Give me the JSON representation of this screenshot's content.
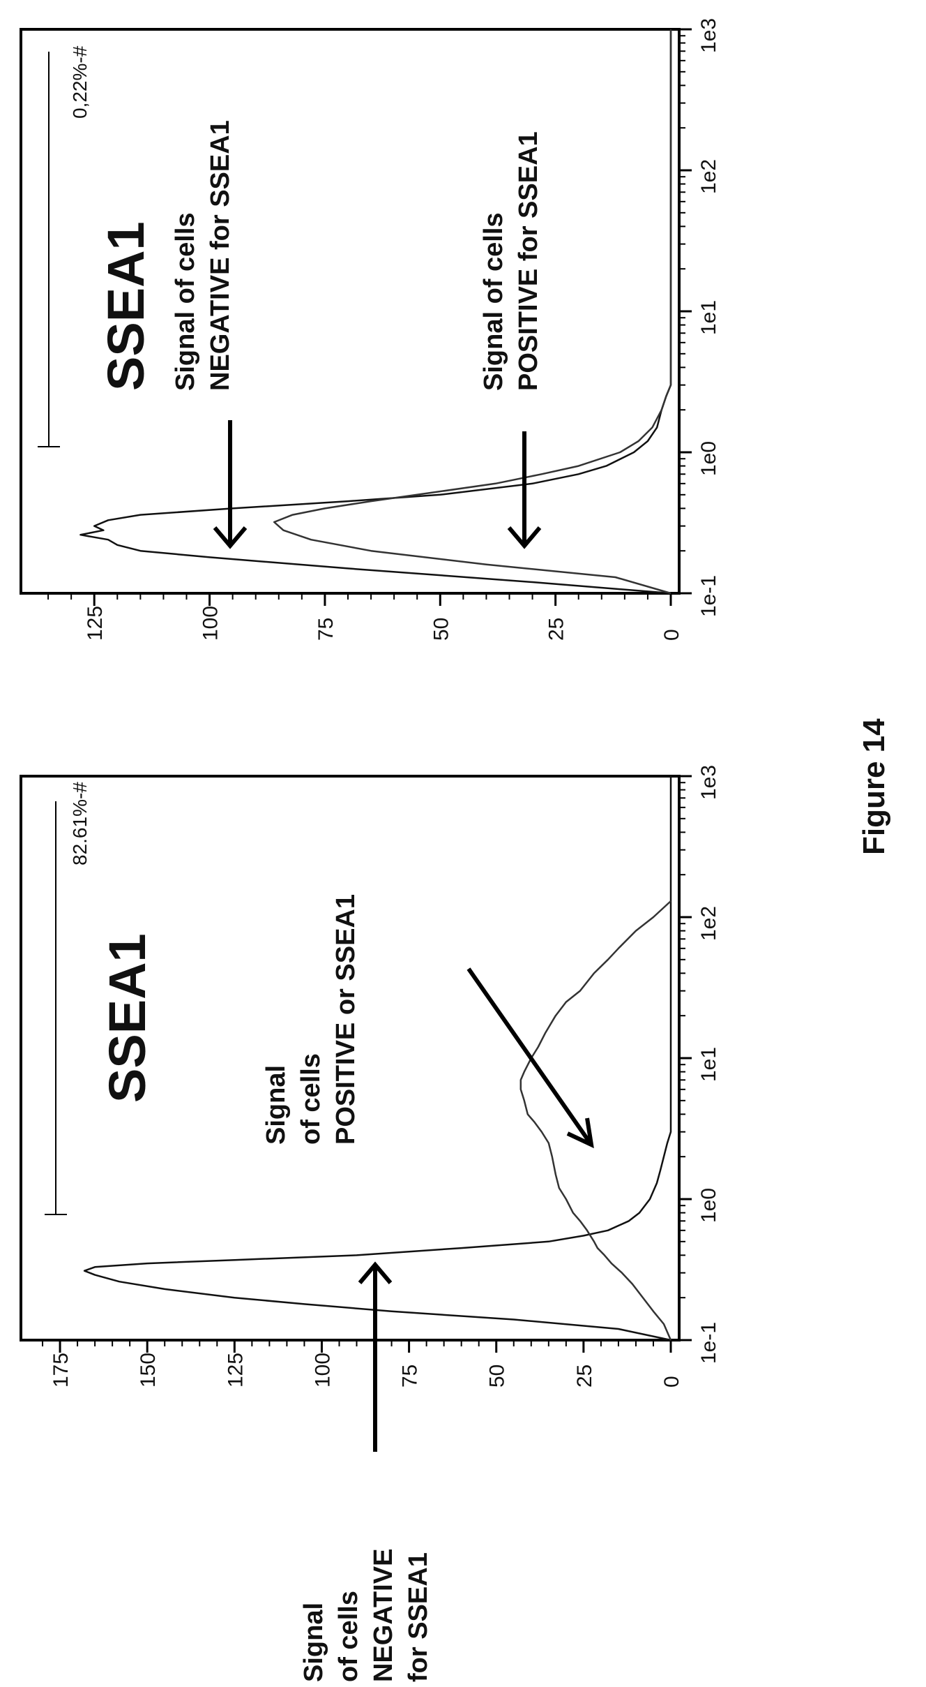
{
  "figure_label": "Figure 14",
  "chart_data": [
    {
      "type": "line",
      "name": "left-histogram",
      "marker_label": "SSEA1",
      "gate_label": "82.61%-#",
      "x_scale": "log",
      "xlim": [
        0.1,
        1000
      ],
      "x_ticks": [
        "1e-1",
        "1e0",
        "1e1",
        "1e2",
        "1e3"
      ],
      "ylim": [
        0,
        185
      ],
      "y_ticks": [
        "0",
        "25",
        "50",
        "75",
        "100",
        "125",
        "150",
        "175"
      ],
      "annotations": {
        "inside": [
          "Signal",
          "of cells",
          "POSITIVE or SSEA1"
        ],
        "outside": [
          "Signal",
          "of cells",
          "NEGATIVE",
          "for SSEA1"
        ]
      },
      "series": [
        {
          "x": [
            0.1,
            0.12,
            0.14,
            0.16,
            0.18,
            0.2,
            0.23,
            0.26,
            0.29,
            0.31,
            0.33,
            0.35,
            0.37,
            0.4,
            0.45,
            0.5,
            0.55,
            0.6,
            0.7,
            0.8,
            1.0,
            1.3,
            1.6,
            2.0,
            2.5,
            3.0,
            5.0,
            10,
            100,
            1000
          ],
          "values": [
            0,
            15,
            45,
            80,
            105,
            125,
            145,
            158,
            165,
            168,
            165,
            150,
            125,
            90,
            60,
            35,
            25,
            18,
            12,
            9,
            6,
            4,
            3,
            2,
            1,
            0,
            0,
            0,
            0,
            0
          ]
        },
        {
          "x": [
            0.1,
            0.13,
            0.16,
            0.2,
            0.25,
            0.3,
            0.35,
            0.4,
            0.45,
            0.5,
            0.6,
            0.7,
            0.8,
            1.0,
            1.2,
            1.5,
            2.0,
            2.5,
            3.0,
            3.5,
            4.0,
            5.0,
            6.0,
            7.0,
            8.0,
            10,
            12,
            15,
            20,
            25,
            30,
            40,
            50,
            60,
            80,
            100,
            130
          ],
          "values": [
            0,
            2,
            5,
            8,
            11,
            14,
            17,
            19,
            21,
            22,
            24,
            26,
            28,
            30,
            32,
            33,
            34,
            35,
            37,
            39,
            41,
            42,
            43,
            43,
            42,
            40,
            38,
            36,
            33,
            30,
            26,
            22,
            18,
            15,
            10,
            5,
            0
          ]
        }
      ]
    },
    {
      "type": "line",
      "name": "right-histogram",
      "marker_label": "SSEA1",
      "gate_label": "0,22%-#",
      "x_scale": "log",
      "xlim": [
        0.1,
        1000
      ],
      "x_ticks": [
        "1e-1",
        "1e0",
        "1e1",
        "1e2",
        "1e3"
      ],
      "ylim": [
        0,
        140
      ],
      "y_ticks": [
        "0",
        "25",
        "50",
        "75",
        "100",
        "125"
      ],
      "annotations": {
        "upper": [
          "Signal of cells",
          "NEGATIVE for SSEA1"
        ],
        "lower": [
          "Signal of cells",
          "POSITIVE for SSEA1"
        ]
      },
      "series": [
        {
          "x": [
            0.1,
            0.12,
            0.15,
            0.18,
            0.2,
            0.22,
            0.24,
            0.26,
            0.28,
            0.3,
            0.33,
            0.36,
            0.4,
            0.45,
            0.5,
            0.6,
            0.7,
            0.8,
            1.0,
            1.2,
            1.5,
            2.0,
            2.5,
            3.0,
            3.5,
            10,
            1000
          ],
          "values": [
            0,
            30,
            70,
            100,
            115,
            120,
            122,
            128,
            123,
            125,
            122,
            115,
            95,
            70,
            50,
            30,
            20,
            14,
            8,
            5,
            3,
            2,
            1,
            0,
            0,
            0,
            0
          ]
        },
        {
          "x": [
            0.1,
            0.13,
            0.16,
            0.2,
            0.24,
            0.28,
            0.32,
            0.36,
            0.4,
            0.45,
            0.5,
            0.6,
            0.7,
            0.8,
            1.0,
            1.2,
            1.5,
            2.0,
            2.5,
            3.0,
            3.5,
            10,
            1000
          ],
          "values": [
            0,
            12,
            40,
            65,
            78,
            84,
            86,
            82,
            75,
            65,
            55,
            38,
            28,
            20,
            11,
            7,
            4,
            2,
            1,
            0,
            0,
            0,
            0
          ]
        }
      ]
    }
  ]
}
